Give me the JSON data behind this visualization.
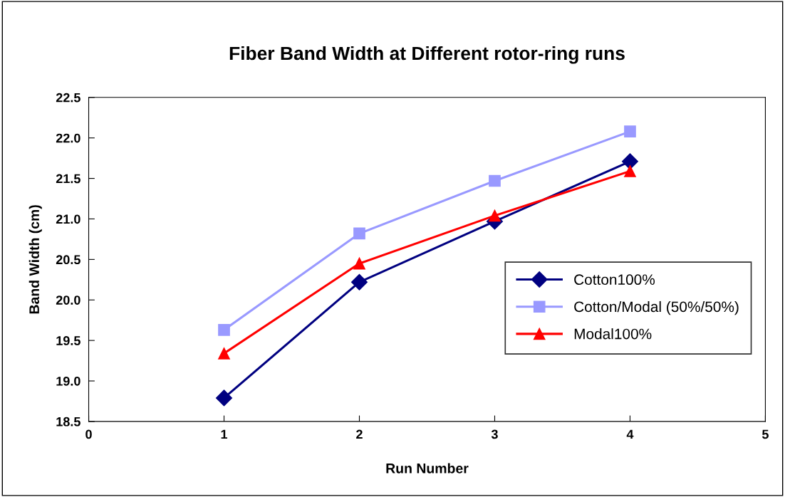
{
  "chart_data": {
    "type": "line",
    "title": "Fiber Band Width at Different rotor-ring runs",
    "xlabel": "Run Number",
    "ylabel": "Band Width (cm)",
    "x": [
      1,
      2,
      3,
      4
    ],
    "series": [
      {
        "name": "Cotton100%",
        "color": "#000080",
        "values": [
          18.79,
          20.22,
          20.97,
          21.71
        ],
        "marker": "diamond"
      },
      {
        "name": "Cotton/Modal (50%/50%)",
        "color": "#9999ff",
        "values": [
          19.63,
          20.82,
          21.47,
          22.08
        ],
        "marker": "square"
      },
      {
        "name": "Modal100%",
        "color": "#ff0000",
        "values": [
          19.34,
          20.45,
          21.04,
          21.59
        ],
        "marker": "triangle"
      }
    ],
    "xlim": [
      0,
      5
    ],
    "xticks": [
      0,
      1,
      2,
      3,
      4,
      5
    ],
    "ylim": [
      18.5,
      22.5
    ],
    "yticks": [
      {
        "value": 18.5,
        "label": "18.5"
      },
      {
        "value": 19,
        "label": "19.0"
      },
      {
        "value": 19.5,
        "label": "19.5"
      },
      {
        "value": 20,
        "label": "20.0"
      },
      {
        "value": 20.5,
        "label": "20.5"
      },
      {
        "value": 21,
        "label": "21.0"
      },
      {
        "value": 21.5,
        "label": "21.5"
      },
      {
        "value": 22,
        "label": "22.0"
      },
      {
        "value": 22.5,
        "label": "22.5"
      }
    ],
    "legend": "center right",
    "grid": false,
    "line_style": "solid"
  }
}
